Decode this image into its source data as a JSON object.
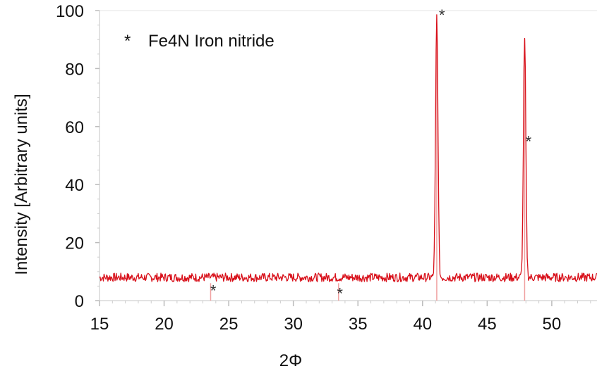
{
  "chart_data": {
    "type": "line",
    "title": "",
    "xlabel": "2Φ",
    "ylabel": "Intensity [Arbitrary units]",
    "xlim": [
      15,
      53.5
    ],
    "ylim": [
      0,
      100
    ],
    "x_ticks": [
      15,
      20,
      25,
      30,
      35,
      40,
      45,
      50
    ],
    "y_ticks": [
      0,
      20,
      40,
      60,
      80,
      100
    ],
    "grid": false,
    "legend": {
      "marker": "*",
      "text": "Fe4N  Iron nitride",
      "placement": "top-left"
    },
    "series": [
      {
        "color": "#d8101a",
        "baseline": 8,
        "noise_amplitude": 1.5,
        "peaks": [
          {
            "x": 41.1,
            "y": 98
          },
          {
            "x": 47.9,
            "y": 90
          }
        ]
      }
    ],
    "reference_lines": {
      "color": "#f0a0a0",
      "x": [
        23.6,
        33.5,
        41.1,
        47.9
      ]
    },
    "annotations": [
      {
        "text": "*",
        "x": 23.8,
        "y": 3.5
      },
      {
        "text": "*",
        "x": 33.6,
        "y": 2.5
      },
      {
        "text": "*",
        "x": 41.5,
        "y": 98.5
      },
      {
        "text": "*",
        "x": 48.2,
        "y": 55
      }
    ]
  }
}
